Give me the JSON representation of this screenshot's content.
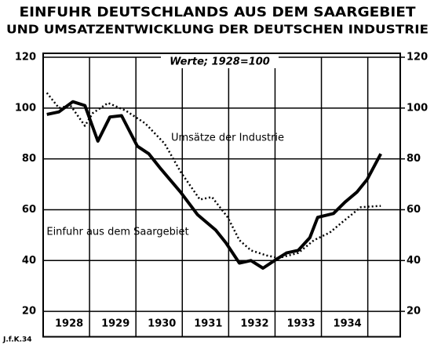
{
  "chart_data": {
    "type": "line",
    "title": [
      "EINFUHR DEUTSCHLANDS AUS DEM SAARGEBIET",
      "UND UMSATZENTWICKLUNG DER DEUTSCHEN INDUSTRIE"
    ],
    "subtitle": "Werte; 1928=100",
    "credit": "J.f.K.34",
    "xlim": [
      1927.0,
      1934.7
    ],
    "xticks": [
      1928,
      1929,
      1930,
      1931,
      1932,
      1933,
      1934
    ],
    "ylim": [
      10,
      120
    ],
    "yticks": [
      20,
      40,
      60,
      80,
      100,
      120
    ],
    "y2lim": [
      10,
      120
    ],
    "y2ticks": [
      20,
      40,
      60,
      80,
      100,
      120
    ],
    "grid": true,
    "series": [
      {
        "name": "Einfuhr aus dem Saargebiet",
        "color": "#000000",
        "style": "solid",
        "x": [
          1927.08,
          1927.34,
          1927.64,
          1927.9,
          1928.18,
          1928.44,
          1928.69,
          1929.03,
          1929.28,
          1929.54,
          1929.96,
          1930.33,
          1930.72,
          1930.94,
          1931.23,
          1931.48,
          1931.74,
          1932.03,
          1932.25,
          1932.5,
          1932.75,
          1932.92,
          1933.26,
          1933.51,
          1933.77,
          1933.99,
          1934.28
        ],
        "values": [
          97.5,
          98.5,
          102.5,
          101,
          87,
          96.5,
          97,
          85,
          82,
          76,
          67,
          58,
          52,
          47,
          39,
          40,
          37,
          40.5,
          43,
          44,
          49,
          57,
          58.5,
          63,
          67,
          72,
          82
        ]
      },
      {
        "name": "Umsätze der Industrie",
        "color": "#000000",
        "style": "dotted",
        "x": [
          1927.08,
          1927.34,
          1927.59,
          1927.9,
          1928.07,
          1928.4,
          1928.78,
          1929.2,
          1929.62,
          1929.96,
          1930.38,
          1930.64,
          1930.98,
          1931.23,
          1931.48,
          1931.82,
          1932.08,
          1932.5,
          1932.84,
          1933.18,
          1933.51,
          1933.85,
          1934.28
        ],
        "values": [
          106,
          100,
          101,
          93,
          98,
          102,
          99,
          94,
          86,
          75,
          64,
          65,
          57,
          48,
          44,
          42,
          41,
          43,
          48,
          51,
          56,
          61,
          61.5
        ]
      }
    ]
  }
}
